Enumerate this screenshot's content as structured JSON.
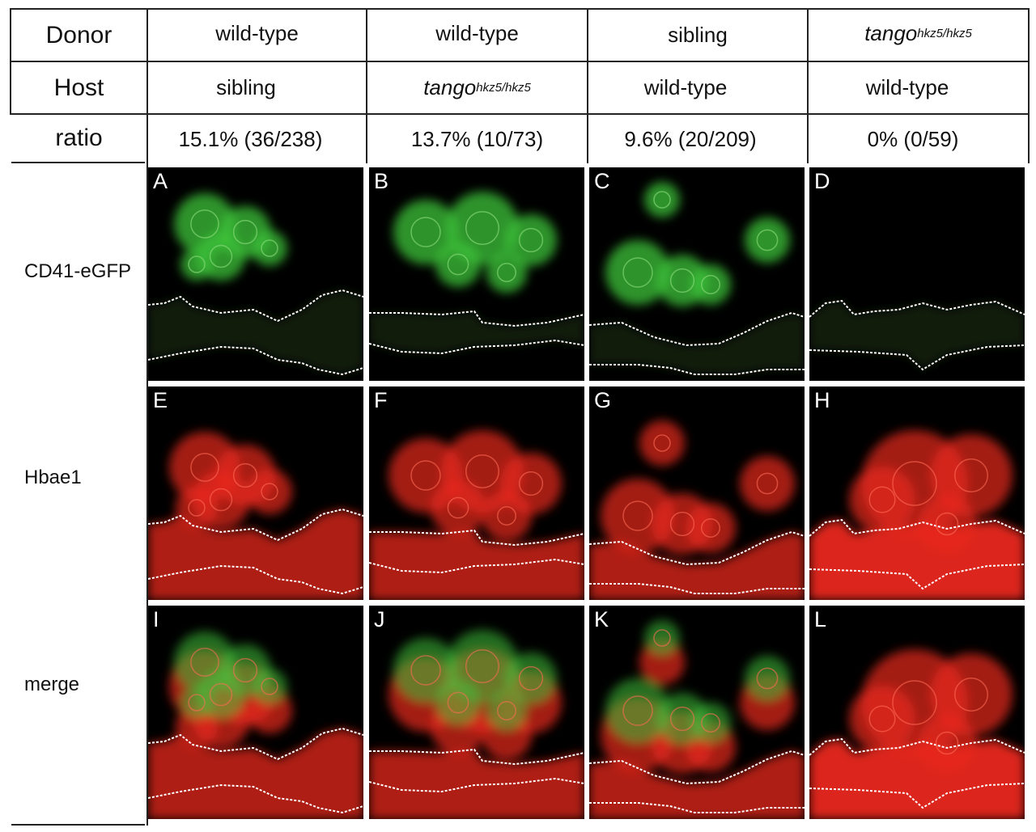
{
  "table": {
    "row_headers": [
      "Donor",
      "Host",
      "ratio"
    ],
    "columns": [
      {
        "donor": "wild-type",
        "host": "sibling",
        "ratio": "15.1% (36/238)"
      },
      {
        "donor": "wild-type",
        "host_gene": "tango",
        "host_genotype": "hkz5/hkz5",
        "ratio": "13.7% (10/73)"
      },
      {
        "donor": "sibling",
        "host": "wild-type",
        "ratio": "9.6% (20/209)"
      },
      {
        "donor_gene": "tango",
        "donor_genotype": "hkz5/hkz5",
        "host": "wild-type",
        "ratio": "0% (0/59)"
      }
    ]
  },
  "rows": [
    {
      "label": "CD41-eGFP",
      "panels": [
        "A",
        "B",
        "C",
        "D"
      ],
      "channel_color": "#3ec43a"
    },
    {
      "label": "Hbae1",
      "panels": [
        "E",
        "F",
        "G",
        "H"
      ],
      "channel_color": "#e8261c"
    },
    {
      "label": "merge",
      "panels": [
        "I",
        "J",
        "K",
        "L"
      ],
      "channel_color": "#c9a233"
    }
  ]
}
